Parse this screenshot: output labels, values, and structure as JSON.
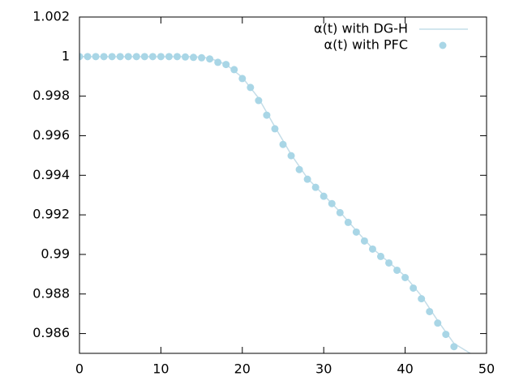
{
  "chart_data": {
    "type": "line",
    "xlim": [
      0,
      50
    ],
    "xticks": [
      0,
      10,
      20,
      30,
      40,
      50
    ],
    "ylim": [
      0.985,
      1.002
    ],
    "yticks": [
      0.986,
      0.988,
      0.99,
      0.992,
      0.994,
      0.996,
      0.998,
      1,
      1.002
    ],
    "legend": "top-right",
    "series": [
      {
        "name": "α(t) with DG-H",
        "type": "line",
        "color": "#c4dde8",
        "x": [
          0,
          5,
          10,
          14,
          16,
          18,
          20,
          22,
          24,
          26,
          28,
          30,
          32,
          34,
          36,
          38,
          40,
          42,
          44,
          46,
          48
        ],
        "values": [
          1,
          1,
          1,
          1,
          0.99992,
          0.9996,
          0.99895,
          0.9979,
          0.99645,
          0.99505,
          0.99385,
          0.993,
          0.99215,
          0.9912,
          0.9903,
          0.9896,
          0.9889,
          0.9879,
          0.98665,
          0.9855,
          0.985
        ]
      },
      {
        "name": "α(t) with PFC",
        "type": "scatter",
        "color": "#a9d6e6",
        "x": [
          0,
          1,
          2,
          3,
          4,
          5,
          6,
          7,
          8,
          9,
          10,
          11,
          12,
          13,
          14,
          15,
          16,
          17,
          18,
          19,
          20,
          21,
          22,
          23,
          24,
          25,
          26,
          27,
          28,
          29,
          30,
          31,
          32,
          33,
          34,
          35,
          36,
          37,
          38,
          39,
          40,
          41,
          42,
          43,
          44,
          45,
          46
        ],
        "values": [
          1,
          1,
          1,
          1,
          1,
          1,
          1,
          1,
          1,
          1,
          1,
          1,
          1,
          0.99998,
          0.99996,
          0.99994,
          0.99988,
          0.99971,
          0.9996,
          0.99934,
          0.99889,
          0.99844,
          0.99778,
          0.99704,
          0.99635,
          0.99556,
          0.99499,
          0.99429,
          0.9938,
          0.99339,
          0.99294,
          0.99257,
          0.99211,
          0.99162,
          0.99113,
          0.99068,
          0.99027,
          0.9899,
          0.98957,
          0.9892,
          0.98883,
          0.9883,
          0.98776,
          0.98711,
          0.98653,
          0.98596,
          0.98534
        ]
      }
    ]
  }
}
